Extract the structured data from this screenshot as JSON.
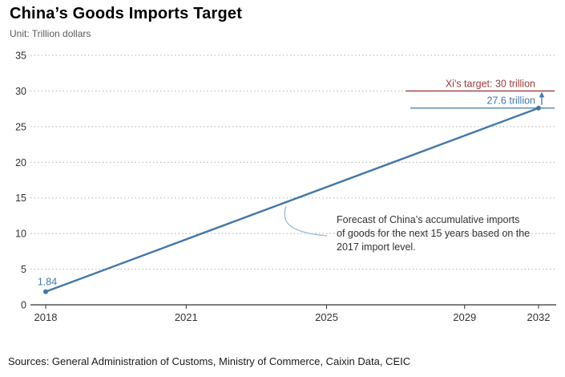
{
  "chart_data": {
    "type": "line",
    "title": "China’s Goods Imports Target",
    "subtitle": "Unit: Trillion dollars",
    "ylabel": "Trillion dollars",
    "ylim": [
      0,
      35
    ],
    "yticks": [
      0,
      5,
      10,
      15,
      20,
      25,
      30,
      35
    ],
    "xticks": [
      "2018",
      "2021",
      "2025",
      "2029",
      "2032"
    ],
    "xlim": [
      2018,
      2032
    ],
    "grid": "horizontal-dotted",
    "series": [
      {
        "name": "Accumulative goods imports forecast",
        "x": [
          2018,
          2032
        ],
        "values": [
          1.84,
          27.6
        ]
      }
    ],
    "point_labels": [
      {
        "x": 2018,
        "value": 1.84,
        "label": "1.84"
      }
    ],
    "end_value_line": {
      "label": "27.6 trillion",
      "value": 27.6
    },
    "target_line": {
      "label": "Xi's target: 30 trillion",
      "value": 30
    },
    "annotation": "Forecast of China’s accumulative imports of goods for the next 15 years based on the 2017 import level.",
    "source": "Sources: General Administration of Customs, Ministry of Commerce, Caixin Data, CEIC",
    "colors": {
      "line": "#4377a8",
      "target": "#9e3b3c",
      "grid": "#b0b0b0",
      "axis": "#333333",
      "text": "#333333",
      "callout": "#9dbbd8"
    }
  }
}
